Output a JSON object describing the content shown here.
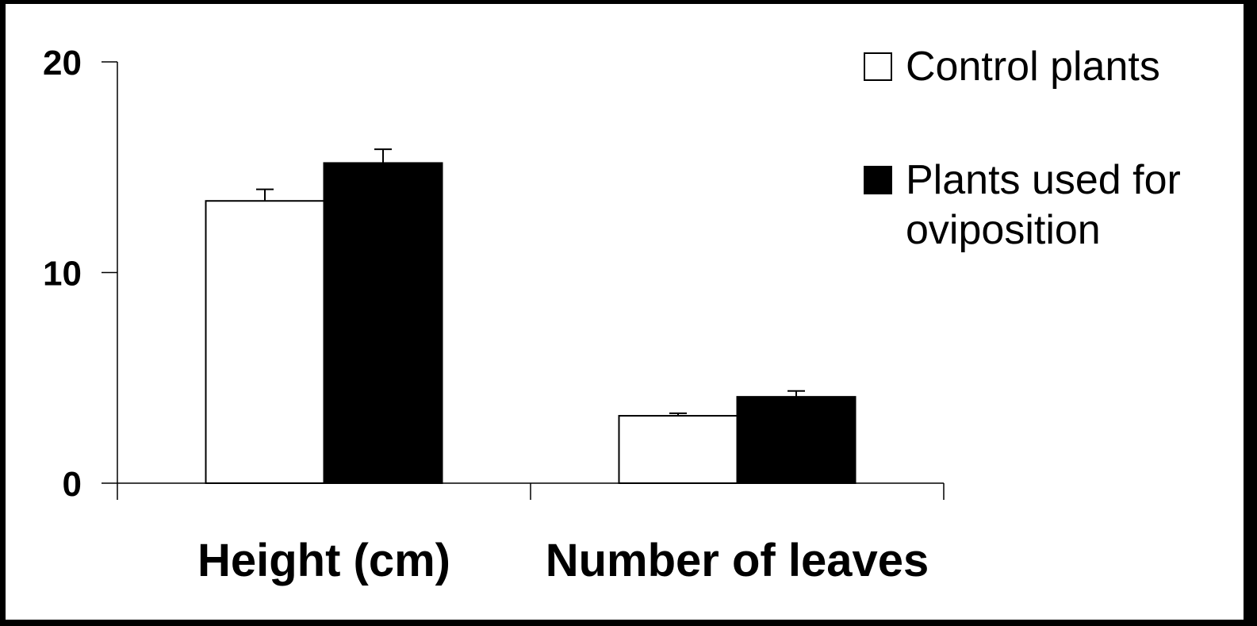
{
  "chart_data": {
    "type": "bar",
    "title": "",
    "xlabel": "",
    "ylabel": "",
    "categories": [
      "Height (cm)",
      "Number of leaves"
    ],
    "series": [
      {
        "name": "Control plants",
        "values": [
          13.4,
          3.2
        ],
        "errors": [
          0.55,
          0.12
        ],
        "color": "#ffffff"
      },
      {
        "name": "Plants used for oviposition",
        "values": [
          15.2,
          4.1
        ],
        "errors": [
          0.65,
          0.28
        ],
        "color": "#000000"
      }
    ],
    "ylim": [
      0,
      20
    ],
    "yticks": [
      0,
      10,
      20
    ],
    "legend": {
      "position": "top-right",
      "entries": [
        {
          "lines": [
            "Control plants"
          ]
        },
        {
          "lines": [
            "Plants used for",
            "oviposition"
          ]
        }
      ]
    },
    "grid": false
  }
}
